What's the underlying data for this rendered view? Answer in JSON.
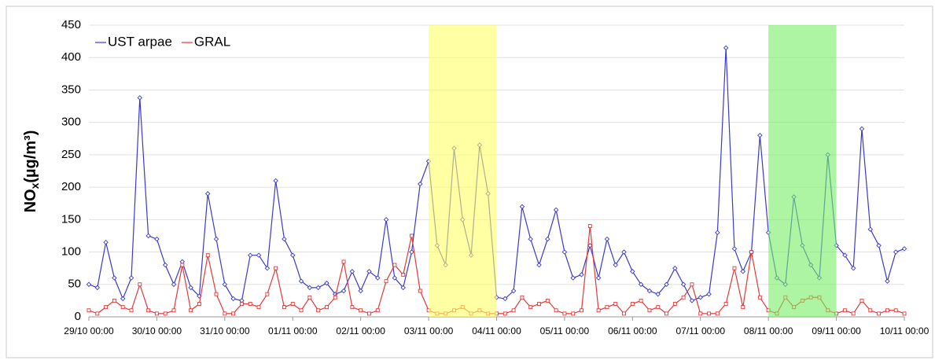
{
  "chart_data": {
    "type": "line",
    "y_label": [
      "NO",
      "x",
      "(µg/m³)"
    ],
    "x": [
      "29/10 00:00",
      "29/10 03:00",
      "29/10 06:00",
      "29/10 09:00",
      "29/10 12:00",
      "29/10 15:00",
      "29/10 18:00",
      "29/10 21:00",
      "30/10 00:00",
      "30/10 03:00",
      "30/10 06:00",
      "30/10 09:00",
      "30/10 12:00",
      "30/10 15:00",
      "30/10 18:00",
      "30/10 21:00",
      "31/10 00:00",
      "31/10 03:00",
      "31/10 06:00",
      "31/10 09:00",
      "31/10 12:00",
      "31/10 15:00",
      "31/10 18:00",
      "31/10 21:00",
      "01/11 00:00",
      "01/11 03:00",
      "01/11 06:00",
      "01/11 09:00",
      "01/11 12:00",
      "01/11 15:00",
      "01/11 18:00",
      "01/11 21:00",
      "02/11 00:00",
      "02/11 03:00",
      "02/11 06:00",
      "02/11 09:00",
      "02/11 12:00",
      "02/11 15:00",
      "02/11 18:00",
      "02/11 21:00",
      "03/11 00:00",
      "03/11 03:00",
      "03/11 06:00",
      "03/11 09:00",
      "03/11 12:00",
      "03/11 15:00",
      "03/11 18:00",
      "03/11 21:00",
      "04/11 00:00",
      "04/11 03:00",
      "04/11 06:00",
      "04/11 09:00",
      "04/11 12:00",
      "04/11 15:00",
      "04/11 18:00",
      "04/11 21:00",
      "05/11 00:00",
      "05/11 03:00",
      "05/11 06:00",
      "05/11 09:00",
      "05/11 12:00",
      "05/11 15:00",
      "05/11 18:00",
      "05/11 21:00",
      "06/11 00:00",
      "06/11 03:00",
      "06/11 06:00",
      "06/11 09:00",
      "06/11 12:00",
      "06/11 15:00",
      "06/11 18:00",
      "06/11 21:00",
      "07/11 00:00",
      "07/11 03:00",
      "07/11 06:00",
      "07/11 09:00",
      "07/11 12:00",
      "07/11 15:00",
      "07/11 18:00",
      "07/11 21:00",
      "08/11 00:00",
      "08/11 03:00",
      "08/11 06:00",
      "08/11 09:00",
      "08/11 12:00",
      "08/11 15:00",
      "08/11 18:00",
      "08/11 21:00",
      "09/11 00:00",
      "09/11 03:00",
      "09/11 06:00",
      "09/11 09:00",
      "09/11 12:00",
      "09/11 15:00",
      "09/11 18:00",
      "09/11 21:00",
      "10/11 00:00"
    ],
    "series": [
      {
        "name": "UST arpae",
        "color": "#3a3acc",
        "marker": "diamond",
        "values": [
          50,
          45,
          115,
          60,
          28,
          60,
          338,
          125,
          120,
          80,
          50,
          85,
          45,
          32,
          190,
          120,
          50,
          28,
          25,
          95,
          95,
          75,
          210,
          120,
          95,
          55,
          45,
          45,
          52,
          35,
          40,
          70,
          40,
          70,
          60,
          150,
          60,
          45,
          100,
          205,
          240,
          110,
          80,
          260,
          150,
          95,
          265,
          190,
          30,
          28,
          40,
          170,
          120,
          80,
          120,
          165,
          100,
          60,
          65,
          110,
          60,
          120,
          80,
          100,
          70,
          50,
          40,
          35,
          50,
          75,
          50,
          25,
          30,
          35,
          130,
          415,
          105,
          70,
          100,
          280,
          130,
          60,
          50,
          185,
          110,
          80,
          60,
          250,
          110,
          95,
          75,
          290,
          135,
          110,
          55,
          100,
          105
        ]
      },
      {
        "name": "GRAL",
        "color": "#e03a3a",
        "marker": "square",
        "values": [
          10,
          5,
          15,
          25,
          15,
          10,
          50,
          10,
          5,
          5,
          10,
          80,
          10,
          20,
          95,
          35,
          5,
          5,
          20,
          20,
          15,
          35,
          75,
          15,
          20,
          10,
          30,
          10,
          15,
          30,
          85,
          15,
          10,
          5,
          10,
          55,
          80,
          65,
          125,
          40,
          10,
          5,
          5,
          10,
          15,
          5,
          10,
          5,
          5,
          5,
          10,
          30,
          15,
          20,
          25,
          10,
          5,
          5,
          10,
          140,
          10,
          15,
          20,
          5,
          20,
          25,
          10,
          15,
          5,
          20,
          30,
          50,
          5,
          5,
          5,
          20,
          75,
          15,
          100,
          30,
          10,
          5,
          30,
          15,
          25,
          30,
          30,
          10,
          5,
          10,
          5,
          25,
          10,
          5,
          10,
          10,
          5
        ]
      }
    ],
    "xticks": [
      "29/10 00:00",
      "30/10 00:00",
      "31/10 00:00",
      "01/11 00:00",
      "02/11 00:00",
      "03/11 00:00",
      "04/11 00:00",
      "05/11 00:00",
      "06/11 00:00",
      "07/11 00:00",
      "08/11 00:00",
      "09/11 00:00",
      "10/11 00:00"
    ],
    "ylim": [
      0,
      450
    ],
    "yticks": [
      0,
      50,
      100,
      150,
      200,
      250,
      300,
      350,
      400,
      450
    ],
    "grid": true,
    "legend": "top-left",
    "highlights": [
      {
        "start": "03/11 00:00",
        "end": "04/11 00:00",
        "color": "#ffff66"
      },
      {
        "start": "08/11 00:00",
        "end": "09/11 00:00",
        "color": "#77ee66"
      }
    ]
  }
}
